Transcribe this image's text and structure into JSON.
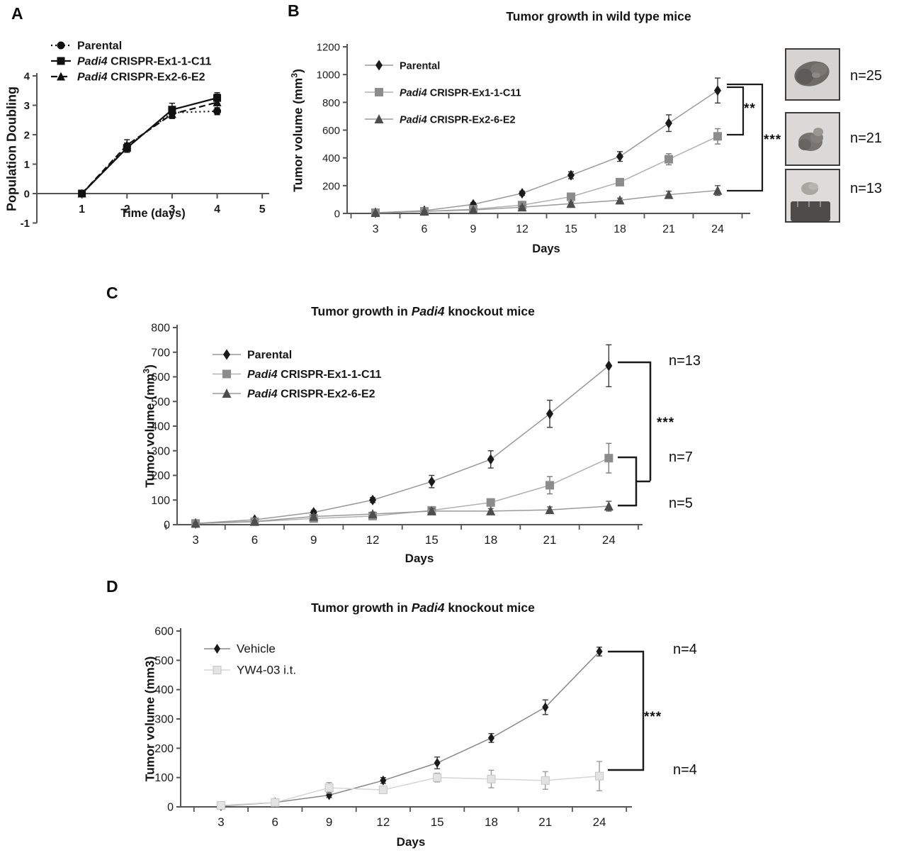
{
  "panels": {
    "a": {
      "label": "A"
    },
    "b": {
      "label": "B",
      "sig_inner": "**",
      "sig_outer": "***",
      "n_labels": [
        "n=25",
        "n=21",
        "n=13"
      ]
    },
    "c": {
      "label": "C",
      "sig": "***",
      "n_labels": [
        "n=13",
        "n=7",
        "n=5"
      ]
    },
    "d": {
      "label": "D",
      "sig": "***",
      "n_labels": [
        "n=4",
        "n=4"
      ]
    }
  },
  "chart_data": [
    {
      "id": "a",
      "type": "line",
      "title_parts": [],
      "xlabel": "Time (days)",
      "ylabel_parts": [
        {
          "t": "Population Doubling"
        }
      ],
      "x": [
        1,
        2,
        3,
        4
      ],
      "xticks": [
        1,
        2,
        3,
        4,
        5
      ],
      "yticks": [
        -1,
        0,
        1,
        2,
        3,
        4
      ],
      "ylim": [
        -1,
        4
      ],
      "xlim": [
        0,
        5.06
      ],
      "series": [
        {
          "name_parts": [
            {
              "t": "Parental"
            }
          ],
          "marker": "circle",
          "color": "#111111",
          "line_color": "#111111",
          "dash": "2 4",
          "values": [
            0,
            1.6,
            2.75,
            2.8
          ],
          "errors": [
            0,
            0.12,
            0.15,
            0.12
          ]
        },
        {
          "name_parts": [
            {
              "t": "Padi4",
              "i": true
            },
            {
              "t": " CRISPR-Ex1-1-C11"
            }
          ],
          "marker": "square",
          "color": "#111111",
          "line_color": "#111111",
          "dash": "",
          "values": [
            0,
            1.55,
            2.85,
            3.25
          ],
          "errors": [
            0,
            0.15,
            0.22,
            0.18
          ]
        },
        {
          "name_parts": [
            {
              "t": "Padi4",
              "i": true
            },
            {
              "t": " CRISPR-Ex2-6-E2"
            }
          ],
          "marker": "triangle",
          "color": "#111111",
          "line_color": "#111111",
          "dash": "9 5",
          "values": [
            0,
            1.65,
            2.7,
            3.1
          ],
          "errors": [
            0,
            0.18,
            0.15,
            0.28
          ]
        }
      ]
    },
    {
      "id": "b",
      "type": "line",
      "title_parts": [
        {
          "t": "Tumor growth in wild type mice"
        }
      ],
      "xlabel": "Days",
      "ylabel_parts": [
        {
          "t": "Tumor volume (mm"
        },
        {
          "t": "3",
          "sup": true
        },
        {
          "t": ")"
        }
      ],
      "x": [
        3,
        6,
        9,
        12,
        15,
        18,
        21,
        24
      ],
      "xticks": [
        3,
        6,
        9,
        12,
        15,
        18,
        21,
        24
      ],
      "yticks": [
        0,
        200,
        400,
        600,
        800,
        1000,
        1200
      ],
      "ylim": [
        0,
        1200
      ],
      "xlim": [
        1.26,
        25.74
      ],
      "series": [
        {
          "name_parts": [
            {
              "t": "Parental"
            }
          ],
          "marker": "diamond",
          "color": "#1a1a1a",
          "line_color": "#999999",
          "err_color": "#3a3a3a",
          "dash": "",
          "values": [
            5,
            20,
            65,
            145,
            275,
            410,
            650,
            885
          ],
          "errors": [
            4,
            6,
            12,
            15,
            25,
            35,
            60,
            90
          ]
        },
        {
          "name_parts": [
            {
              "t": "Padi4",
              "i": true
            },
            {
              "t": " CRISPR-Ex1-1-C11"
            }
          ],
          "marker": "square",
          "color": "#8c8c8c",
          "line_color": "#b0b0b0",
          "err_color": "#7a7a7a",
          "dash": "",
          "values": [
            5,
            15,
            30,
            60,
            120,
            225,
            390,
            555
          ],
          "errors": [
            3,
            5,
            8,
            10,
            18,
            25,
            40,
            55
          ]
        },
        {
          "name_parts": [
            {
              "t": "Padi4",
              "i": true
            },
            {
              "t": " CRISPR-Ex2-6-E2"
            }
          ],
          "marker": "triangle",
          "color": "#4d4d4d",
          "line_color": "#999999",
          "err_color": "#555555",
          "dash": "",
          "values": [
            5,
            15,
            25,
            45,
            70,
            95,
            135,
            165
          ],
          "errors": [
            3,
            4,
            6,
            8,
            12,
            15,
            25,
            35
          ]
        }
      ]
    },
    {
      "id": "c",
      "type": "line",
      "title_parts": [
        {
          "t": "Tumor growth in "
        },
        {
          "t": "Padi4",
          "i": true
        },
        {
          "t": " knockout mice"
        }
      ],
      "xlabel": "Days",
      "ylabel_parts": [
        {
          "t": "Tumor volume (mm"
        },
        {
          "t": "3",
          "sup": true
        },
        {
          "t": ")"
        }
      ],
      "x": [
        3,
        6,
        9,
        12,
        15,
        18,
        21,
        24
      ],
      "xticks": [
        3,
        6,
        9,
        12,
        15,
        18,
        21,
        24
      ],
      "yticks": [
        0,
        100,
        200,
        300,
        400,
        500,
        600,
        700,
        800
      ],
      "ylim": [
        0,
        800
      ],
      "xlim": [
        2.06,
        25.5
      ],
      "series": [
        {
          "name_parts": [
            {
              "t": "Parental"
            }
          ],
          "marker": "diamond",
          "color": "#1a1a1a",
          "line_color": "#999999",
          "err_color": "#3a3a3a",
          "dash": "",
          "values": [
            5,
            20,
            50,
            100,
            175,
            265,
            450,
            645
          ],
          "errors": [
            3,
            5,
            8,
            10,
            25,
            35,
            55,
            85
          ]
        },
        {
          "name_parts": [
            {
              "t": "Padi4",
              "i": true
            },
            {
              "t": " CRISPR-Ex1-1-C11"
            }
          ],
          "marker": "square",
          "color": "#8c8c8c",
          "line_color": "#b0b0b0",
          "err_color": "#7a7a7a",
          "dash": "",
          "values": [
            5,
            12,
            25,
            35,
            58,
            90,
            160,
            270
          ],
          "errors": [
            2,
            3,
            5,
            8,
            10,
            15,
            35,
            60
          ]
        },
        {
          "name_parts": [
            {
              "t": "Padi4",
              "i": true
            },
            {
              "t": " CRISPR-Ex2-6-E2"
            }
          ],
          "marker": "triangle",
          "color": "#4d4d4d",
          "line_color": "#999999",
          "err_color": "#555555",
          "dash": "",
          "values": [
            5,
            13,
            33,
            43,
            55,
            55,
            60,
            75
          ],
          "errors": [
            2,
            3,
            5,
            8,
            10,
            10,
            12,
            20
          ]
        }
      ]
    },
    {
      "id": "d",
      "type": "line",
      "title_parts": [
        {
          "t": "Tumor growth in "
        },
        {
          "t": "Padi4",
          "i": true
        },
        {
          "t": " knockout mice"
        }
      ],
      "xlabel": "Days",
      "ylabel_parts": [
        {
          "t": "Tumor volume (mm3)"
        }
      ],
      "x": [
        3,
        6,
        9,
        12,
        15,
        18,
        21,
        24
      ],
      "xticks": [
        3,
        6,
        9,
        12,
        15,
        18,
        21,
        24
      ],
      "yticks": [
        0,
        100,
        200,
        300,
        400,
        500,
        600
      ],
      "ylim": [
        0,
        600
      ],
      "xlim": [
        0.76,
        25.57
      ],
      "series": [
        {
          "name_parts": [
            {
              "t": "Vehicle"
            }
          ],
          "marker": "diamond",
          "color": "#1a1a1a",
          "line_color": "#888888",
          "err_color": "#3a3a3a",
          "dash": "",
          "values": [
            3,
            15,
            40,
            90,
            150,
            235,
            340,
            530
          ],
          "errors": [
            2,
            3,
            8,
            10,
            20,
            15,
            25,
            15
          ]
        },
        {
          "name_parts": [
            {
              "t": "YW4-03 i.t."
            }
          ],
          "marker": "square",
          "color": "#e3e3e3",
          "line_color": "#d5d5d5",
          "err_color": "#9b9b9b",
          "dash": "",
          "values": [
            5,
            15,
            65,
            58,
            100,
            95,
            90,
            105
          ],
          "errors": [
            3,
            4,
            18,
            10,
            15,
            30,
            30,
            50
          ]
        }
      ]
    }
  ]
}
